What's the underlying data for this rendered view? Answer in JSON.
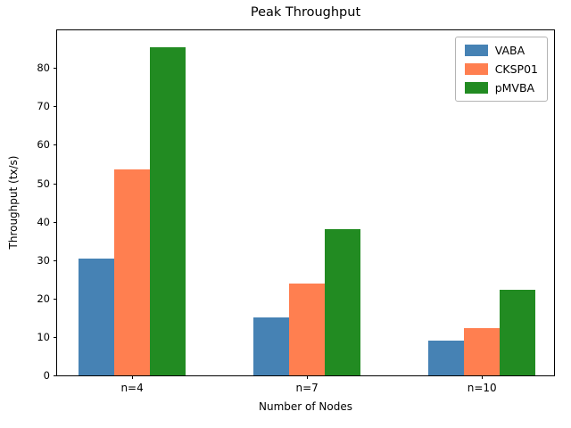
{
  "chart_data": {
    "type": "bar",
    "title": "Peak Throughput",
    "xlabel": "Number of Nodes",
    "ylabel": "Throughput (tx/s)",
    "categories": [
      "n=4",
      "n=7",
      "n=10"
    ],
    "series": [
      {
        "name": "VABA",
        "color": "#4682B4",
        "values": [
          30.5,
          15.2,
          9.1
        ]
      },
      {
        "name": "CKSP01",
        "color": "#FF7F50",
        "values": [
          53.5,
          23.9,
          12.2
        ]
      },
      {
        "name": "pMVBA",
        "color": "#228B22",
        "values": [
          85.5,
          38.0,
          22.2
        ]
      }
    ],
    "ylim": [
      0,
      89.8
    ],
    "yticks": [
      0,
      10,
      20,
      30,
      40,
      50,
      60,
      70,
      80
    ],
    "legend_position": "upper right",
    "grid": false
  }
}
